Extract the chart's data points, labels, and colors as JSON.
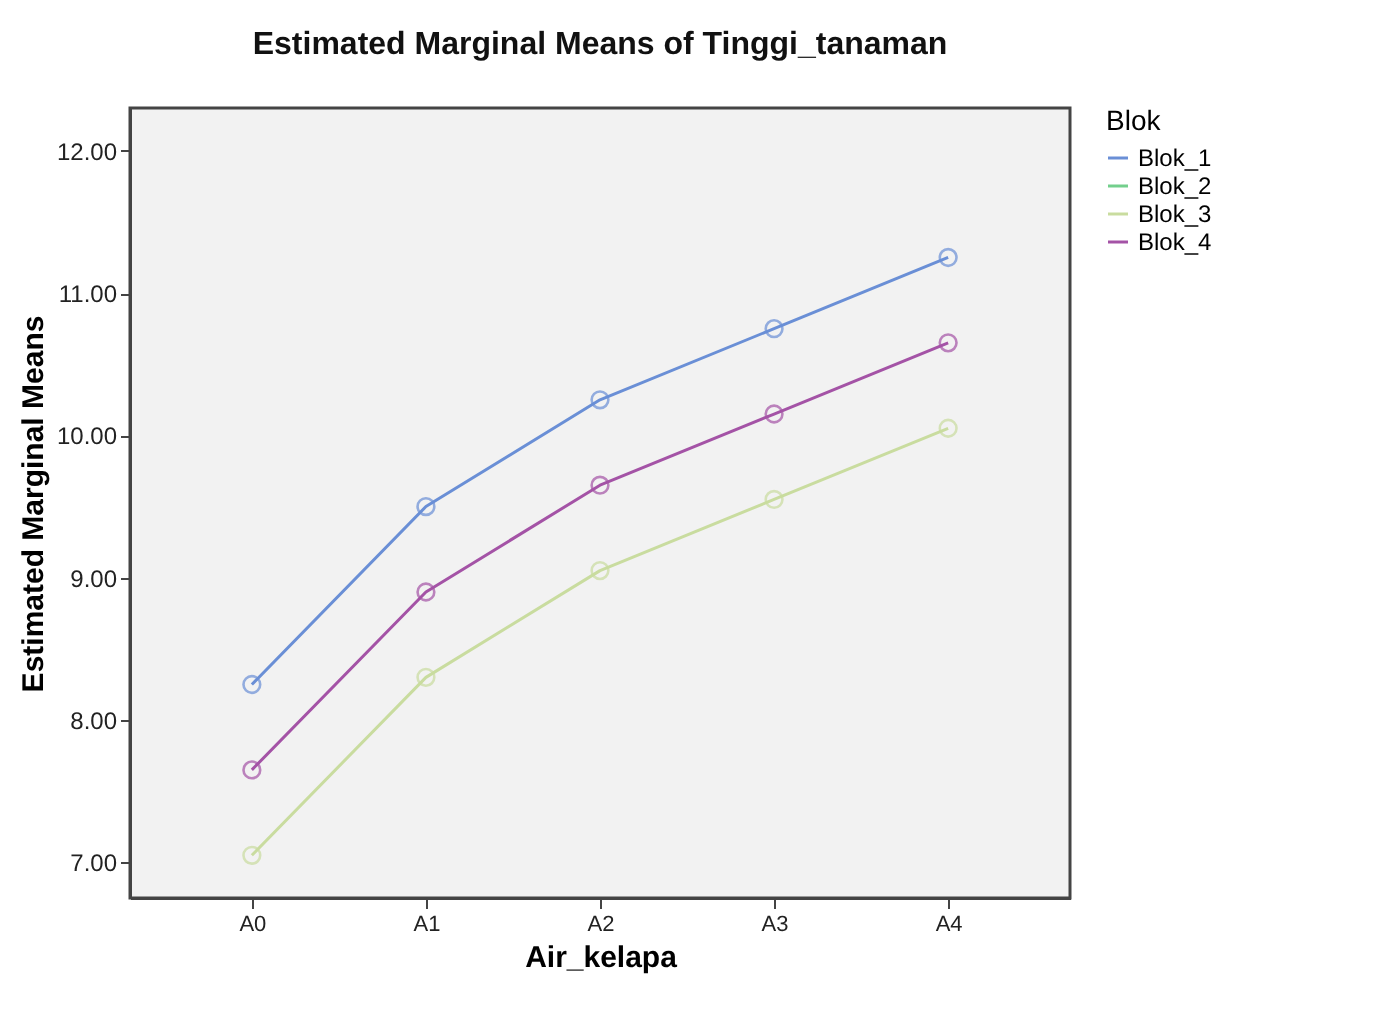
{
  "chart_data": {
    "type": "line",
    "title": "Estimated Marginal Means of Tinggi_tanaman",
    "xlabel": "Air_kelapa",
    "ylabel": "Estimated Marginal Means",
    "legend_title": "Blok",
    "legend": "top right",
    "marker": "circle",
    "line_style": "solid",
    "grid": false,
    "categories": [
      "A0",
      "A1",
      "A2",
      "A3",
      "A4"
    ],
    "ylim": [
      6.75,
      12.3
    ],
    "yticks": [
      {
        "value": 7,
        "label": "7.00"
      },
      {
        "value": 8,
        "label": "8.00"
      },
      {
        "value": 9,
        "label": "9.00"
      },
      {
        "value": 10,
        "label": "10.00"
      },
      {
        "value": 11,
        "label": "11.00"
      },
      {
        "value": 12,
        "label": "12.00"
      }
    ],
    "series": [
      {
        "name": "Blok_1",
        "color": "#6a8fd6",
        "values": [
          8.25,
          9.5,
          10.25,
          10.75,
          11.25
        ]
      },
      {
        "name": "Blok_2",
        "color": "#73cf8c",
        "values": [
          null,
          null,
          null,
          null,
          null
        ]
      },
      {
        "name": "Blok_3",
        "color": "#c9dc9f",
        "values": [
          7.05,
          8.3,
          9.05,
          9.55,
          10.05
        ]
      },
      {
        "name": "Blok_4",
        "color": "#a453a6",
        "values": [
          7.65,
          8.9,
          9.65,
          10.15,
          10.65
        ]
      }
    ]
  }
}
